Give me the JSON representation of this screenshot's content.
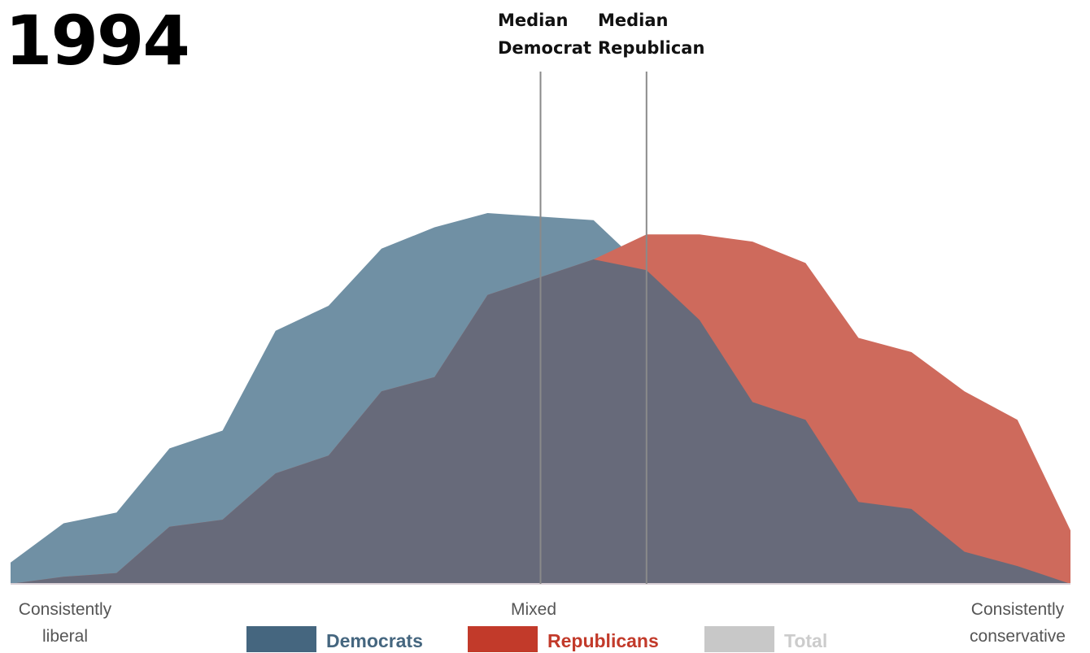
{
  "year": "1994",
  "medians": {
    "democrat": {
      "line1": "Median",
      "line2": "Democrat",
      "x": 0.5
    },
    "republican": {
      "line1": "Median",
      "line2": "Republican",
      "x": 0.6
    }
  },
  "axis": {
    "left_line1": "Consistently",
    "left_line2": "liberal",
    "middle": "Mixed",
    "right_line1": "Consistently",
    "right_line2": "conservative"
  },
  "legend": {
    "democrats": "Democrats",
    "republicans": "Republicans",
    "total": "Total"
  },
  "colors": {
    "democrats_area": "#7090a4",
    "republicans_area": "#ce6a5c",
    "overlap_area": "#676a7a",
    "median_line": "#8a8a8a",
    "legend_democrats": "#45667f",
    "legend_republicans": "#c23a2a",
    "legend_total": "#c8c8c8",
    "legend_total_text": "#cccccc"
  },
  "chart_data": {
    "type": "area",
    "x": [
      0,
      0.05,
      0.1,
      0.15,
      0.2,
      0.25,
      0.3,
      0.35,
      0.4,
      0.45,
      0.5,
      0.55,
      0.6,
      0.65,
      0.7,
      0.75,
      0.8,
      0.85,
      0.9,
      0.95,
      1
    ],
    "series": [
      {
        "name": "Democrats",
        "values": [
          6,
          17,
          20,
          38,
          43,
          71,
          78,
          94,
          100,
          104,
          103,
          102,
          88,
          74,
          51,
          46,
          23,
          21,
          9,
          5,
          0
        ]
      },
      {
        "name": "Republicans",
        "values": [
          0,
          2,
          3,
          16,
          18,
          31,
          36,
          54,
          58,
          81,
          86,
          91,
          98,
          98,
          96,
          90,
          69,
          65,
          54,
          46,
          15
        ]
      }
    ],
    "x_labels": {
      "left": "Consistently liberal",
      "middle": "Mixed",
      "right": "Consistently conservative"
    },
    "ylim": [
      0,
      104
    ],
    "grid": false,
    "legend_position": "bottom"
  }
}
